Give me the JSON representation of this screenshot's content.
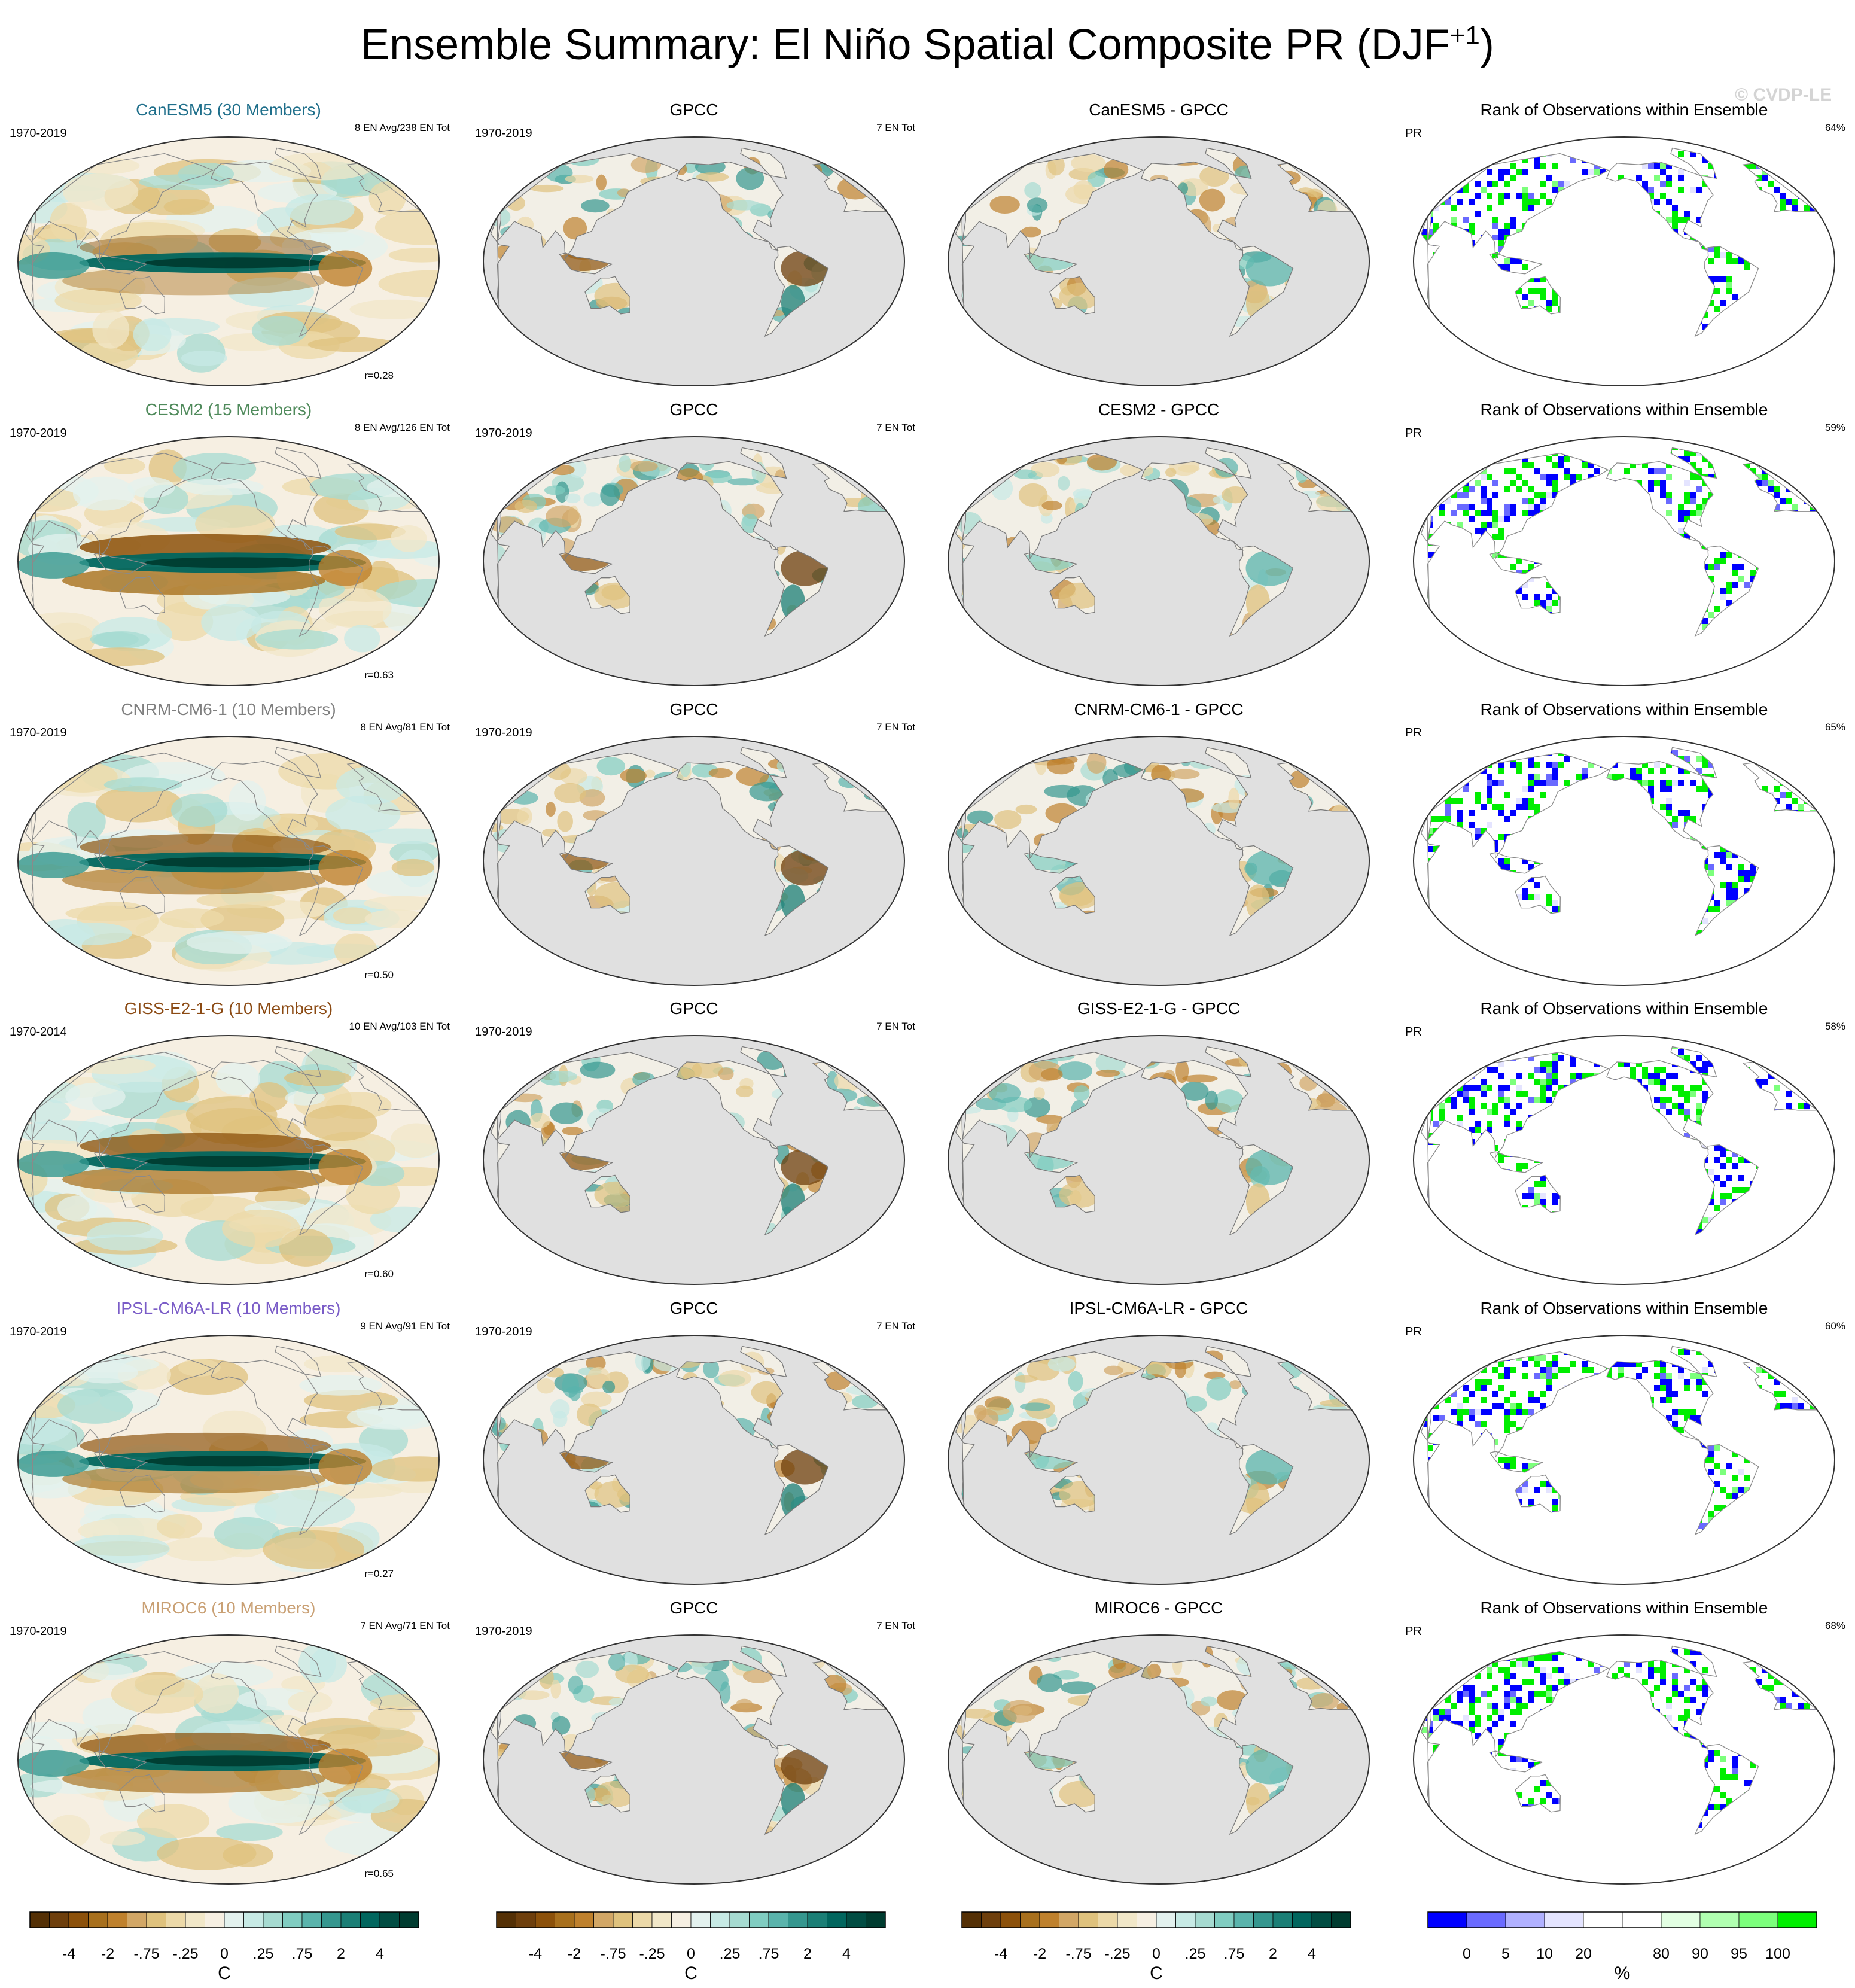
{
  "title": {
    "main": "Ensemble Summary: El Niño Spatial Composite PR (DJF",
    "superscript": "+1",
    "close": ")"
  },
  "watermark": "© CVDP-LE",
  "colors": {
    "model_titles": {
      "CanESM5": "#1f6f8b",
      "CESM2": "#4f8a5b",
      "CNRM-CM6-1": "#808080",
      "GISS-E2-1-G": "#8b4a13",
      "IPSL-CM6A-LR": "#7a5cc7",
      "MIROC6": "#c9a074"
    },
    "land_gray": "#e0e0e0",
    "coast": "#555555"
  },
  "rows": [
    {
      "model": {
        "title": "CanESM5 (30 Members)",
        "period": "1970-2019",
        "events": "8 EN Avg/238 EN Tot",
        "corr": "r=0.28"
      },
      "obs": {
        "title": "GPCC",
        "period": "1970-2019",
        "events": "7 EN Tot"
      },
      "diff": {
        "title": "CanESM5 - GPCC"
      },
      "rank": {
        "title": "Rank of Observations within Ensemble",
        "var": "PR",
        "pct": "64%"
      }
    },
    {
      "model": {
        "title": "CESM2 (15 Members)",
        "period": "1970-2019",
        "events": "8 EN Avg/126 EN Tot",
        "corr": "r=0.63"
      },
      "obs": {
        "title": "GPCC",
        "period": "1970-2019",
        "events": "7 EN Tot"
      },
      "diff": {
        "title": "CESM2 - GPCC"
      },
      "rank": {
        "title": "Rank of Observations within Ensemble",
        "var": "PR",
        "pct": "59%"
      }
    },
    {
      "model": {
        "title": "CNRM-CM6-1 (10 Members)",
        "period": "1970-2019",
        "events": "8 EN Avg/81 EN Tot",
        "corr": "r=0.50"
      },
      "obs": {
        "title": "GPCC",
        "period": "1970-2019",
        "events": "7 EN Tot"
      },
      "diff": {
        "title": "CNRM-CM6-1 - GPCC"
      },
      "rank": {
        "title": "Rank of Observations within Ensemble",
        "var": "PR",
        "pct": "65%"
      }
    },
    {
      "model": {
        "title": "GISS-E2-1-G (10 Members)",
        "period": "1970-2014",
        "events": "10 EN Avg/103 EN Tot",
        "corr": "r=0.60"
      },
      "obs": {
        "title": "GPCC",
        "period": "1970-2019",
        "events": "7 EN Tot"
      },
      "diff": {
        "title": "GISS-E2-1-G - GPCC"
      },
      "rank": {
        "title": "Rank of Observations within Ensemble",
        "var": "PR",
        "pct": "58%"
      }
    },
    {
      "model": {
        "title": "IPSL-CM6A-LR (10 Members)",
        "period": "1970-2019",
        "events": "9 EN Avg/91 EN Tot",
        "corr": "r=0.27"
      },
      "obs": {
        "title": "GPCC",
        "period": "1970-2019",
        "events": "7 EN Tot"
      },
      "diff": {
        "title": "IPSL-CM6A-LR - GPCC"
      },
      "rank": {
        "title": "Rank of Observations within Ensemble",
        "var": "PR",
        "pct": "60%"
      }
    },
    {
      "model": {
        "title": "MIROC6 (10 Members)",
        "period": "1970-2019",
        "events": "7 EN Avg/71 EN Tot",
        "corr": "r=0.65"
      },
      "obs": {
        "title": "GPCC",
        "period": "1970-2019",
        "events": "7 EN Tot"
      },
      "diff": {
        "title": "MIROC6 - GPCC"
      },
      "rank": {
        "title": "Rank of Observations within Ensemble",
        "var": "PR",
        "pct": "68%"
      }
    }
  ],
  "colorbars": {
    "anomaly": {
      "colors": [
        "#543005",
        "#6e3f0c",
        "#8c510a",
        "#a8701d",
        "#bf812d",
        "#d2a766",
        "#dfc27d",
        "#ecd9a8",
        "#f1e7c8",
        "#f6efe2",
        "#e3f1ee",
        "#c7eae5",
        "#a6dbd1",
        "#80cdc1",
        "#5ab4ac",
        "#35978f",
        "#1b7f76",
        "#01665e",
        "#014d43",
        "#003c30"
      ],
      "ticks": [
        "-4",
        "-2",
        "-.75",
        "-.25",
        "0",
        ".25",
        ".75",
        "2",
        "4"
      ],
      "tick_after_box": [
        2,
        4,
        6,
        8,
        10,
        12,
        14,
        16,
        18
      ],
      "unit": "C"
    },
    "rank": {
      "colors": [
        "#0000ff",
        "#6a6aff",
        "#b0b0ff",
        "#e4e4ff",
        "#ffffff",
        "#ffffff",
        "#e2ffe2",
        "#b0ffb0",
        "#7cff7c",
        "#00ee00"
      ],
      "ticks": [
        "0",
        "5",
        "10",
        "20",
        "80",
        "90",
        "95",
        "100"
      ],
      "tick_after_box": [
        1,
        2,
        3,
        4,
        6,
        7,
        8,
        9
      ],
      "unit": "%"
    }
  }
}
